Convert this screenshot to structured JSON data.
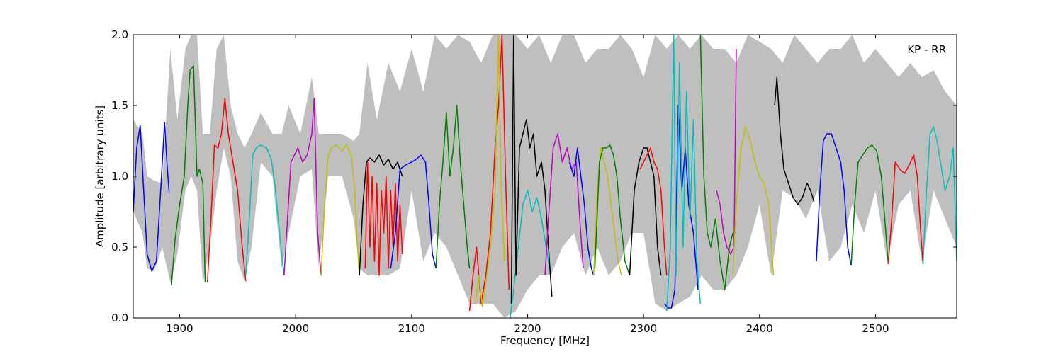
{
  "chart_data": {
    "type": "line",
    "title": "",
    "annotation": "KP - RR",
    "xlabel": "Frequency [MHz]",
    "ylabel": "Amplitude [arbitrary units]",
    "xlim": [
      1860,
      2570
    ],
    "ylim": [
      0.0,
      2.0
    ],
    "xticks": [
      1900,
      2000,
      2100,
      2200,
      2300,
      2400,
      2500
    ],
    "yticks": [
      0.0,
      0.5,
      1.0,
      1.5,
      2.0
    ],
    "xtick_labels": [
      "1900",
      "2000",
      "2100",
      "2200",
      "2300",
      "2400",
      "2500"
    ],
    "ytick_labels": [
      "0.0",
      "0.5",
      "1.0",
      "1.5",
      "2.0"
    ],
    "grid": false,
    "legend": "none",
    "envelope": {
      "color": "#bfbfbf",
      "x": [
        1860,
        1868,
        1872,
        1878,
        1885,
        1892,
        1898,
        1905,
        1910,
        1915,
        1920,
        1926,
        1932,
        1938,
        1944,
        1950,
        1956,
        1962,
        1970,
        1980,
        1988,
        1994,
        2004,
        2014,
        2020,
        2028,
        2040,
        2050,
        2055,
        2062,
        2070,
        2080,
        2090,
        2100,
        2110,
        2120,
        2130,
        2140,
        2150,
        2160,
        2170,
        2180,
        2190,
        2200,
        2210,
        2220,
        2230,
        2240,
        2250,
        2260,
        2270,
        2280,
        2290,
        2300,
        2310,
        2320,
        2330,
        2340,
        2350,
        2360,
        2370,
        2380,
        2390,
        2400,
        2410,
        2420,
        2430,
        2440,
        2450,
        2460,
        2470,
        2480,
        2490,
        2500,
        2510,
        2520,
        2530,
        2540,
        2550,
        2560,
        2570
      ],
      "upper": [
        1.4,
        1.3,
        1.0,
        0.97,
        0.95,
        1.9,
        1.4,
        1.9,
        2.0,
        2.0,
        1.3,
        1.3,
        1.9,
        2.0,
        1.5,
        1.3,
        1.2,
        1.3,
        1.45,
        1.3,
        1.3,
        1.5,
        1.3,
        1.7,
        1.3,
        1.3,
        1.3,
        1.25,
        1.3,
        1.8,
        1.4,
        1.8,
        1.6,
        1.9,
        1.6,
        2.0,
        1.9,
        2.0,
        1.95,
        1.8,
        2.0,
        2.0,
        2.0,
        1.9,
        2.0,
        1.8,
        2.0,
        2.0,
        1.8,
        1.9,
        1.9,
        2.0,
        1.9,
        1.7,
        2.0,
        1.9,
        2.0,
        1.9,
        2.0,
        1.9,
        1.9,
        1.8,
        2.0,
        1.95,
        1.9,
        1.8,
        2.0,
        1.9,
        1.8,
        1.9,
        1.9,
        2.0,
        1.8,
        1.9,
        1.8,
        1.7,
        1.8,
        1.7,
        1.75,
        1.6,
        1.5
      ],
      "lower": [
        0.75,
        0.6,
        0.35,
        0.33,
        0.5,
        0.25,
        0.45,
        0.9,
        1.0,
        0.9,
        0.25,
        0.5,
        0.9,
        1.2,
        1.0,
        0.4,
        0.26,
        0.5,
        1.1,
        1.0,
        0.35,
        0.6,
        1.0,
        1.05,
        0.35,
        1.0,
        1.0,
        0.7,
        0.35,
        0.3,
        0.3,
        0.3,
        0.35,
        0.9,
        0.4,
        0.6,
        0.5,
        0.3,
        0.1,
        0.1,
        0.1,
        0.0,
        0.05,
        0.2,
        0.3,
        0.3,
        0.5,
        0.6,
        0.3,
        0.5,
        0.3,
        0.4,
        0.6,
        0.6,
        0.1,
        0.05,
        0.1,
        0.15,
        0.3,
        0.2,
        0.2,
        0.3,
        0.5,
        0.8,
        0.3,
        0.9,
        0.85,
        0.7,
        0.9,
        0.4,
        0.5,
        0.8,
        0.6,
        0.9,
        0.4,
        0.8,
        0.9,
        0.4,
        0.9,
        0.7,
        0.5
      ]
    },
    "series": [
      {
        "color": "#0000ff",
        "x": [
          1860,
          1863,
          1866,
          1869,
          1872,
          1876,
          1880,
          1884,
          1887,
          1889,
          1891
        ],
        "y": [
          0.75,
          1.2,
          1.36,
          0.9,
          0.45,
          0.33,
          0.4,
          0.95,
          1.38,
          1.1,
          0.88
        ]
      },
      {
        "color": "#008000",
        "x": [
          1893,
          1896,
          1900,
          1904,
          1907,
          1909,
          1912,
          1915,
          1917,
          1920,
          1922
        ],
        "y": [
          0.23,
          0.55,
          0.8,
          1.0,
          1.5,
          1.75,
          1.78,
          1.0,
          1.05,
          0.95,
          0.25
        ]
      },
      {
        "color": "#ff0000",
        "x": [
          1924,
          1927,
          1930,
          1933,
          1936,
          1939,
          1942,
          1946,
          1950,
          1954,
          1957
        ],
        "y": [
          0.25,
          0.7,
          1.22,
          1.2,
          1.3,
          1.55,
          1.3,
          1.1,
          0.9,
          0.5,
          0.26
        ]
      },
      {
        "color": "#00bfbf",
        "x": [
          1957,
          1960,
          1963,
          1966,
          1970,
          1975,
          1979,
          1982,
          1985,
          1988,
          1990
        ],
        "y": [
          0.3,
          0.7,
          1.15,
          1.2,
          1.22,
          1.2,
          1.12,
          0.95,
          0.7,
          0.45,
          0.3
        ]
      },
      {
        "color": "#bf00bf",
        "x": [
          1990,
          1993,
          1996,
          1999,
          2002,
          2006,
          2010,
          2014,
          2016,
          2019,
          2022
        ],
        "y": [
          0.3,
          0.7,
          1.1,
          1.15,
          1.2,
          1.1,
          1.15,
          1.3,
          1.55,
          0.6,
          0.3
        ]
      },
      {
        "color": "#bfbf00",
        "x": [
          2022,
          2025,
          2028,
          2031,
          2035,
          2040,
          2044,
          2048,
          2051,
          2053,
          2055
        ],
        "y": [
          0.3,
          0.8,
          1.15,
          1.2,
          1.22,
          1.18,
          1.22,
          1.15,
          0.9,
          0.55,
          0.3
        ]
      },
      {
        "color": "#000000",
        "x": [
          2055,
          2058,
          2061,
          2064,
          2068,
          2072,
          2076,
          2080,
          2084,
          2088,
          2092
        ],
        "y": [
          0.3,
          0.8,
          1.1,
          1.13,
          1.1,
          1.15,
          1.08,
          1.12,
          1.05,
          1.1,
          1.0
        ]
      },
      {
        "color": "#ff0000",
        "x": [
          2060,
          2062,
          2064,
          2066,
          2068,
          2070,
          2072,
          2074,
          2076,
          2078,
          2080,
          2082,
          2084,
          2086,
          2088,
          2090,
          2092
        ],
        "y": [
          0.35,
          1.1,
          0.5,
          1.0,
          0.4,
          0.95,
          0.3,
          0.9,
          0.6,
          1.0,
          0.35,
          0.9,
          0.5,
          0.95,
          0.4,
          0.8,
          0.45
        ]
      },
      {
        "color": "#0000ff",
        "x": [
          2082,
          2086,
          2090,
          2095,
          2100,
          2104,
          2108,
          2112,
          2115,
          2118,
          2121
        ],
        "y": [
          0.35,
          0.6,
          1.05,
          1.08,
          1.1,
          1.12,
          1.15,
          1.1,
          0.8,
          0.45,
          0.35
        ]
      },
      {
        "color": "#008000",
        "x": [
          2121,
          2124,
          2127,
          2130,
          2133,
          2136,
          2139,
          2142,
          2145,
          2148,
          2150
        ],
        "y": [
          0.35,
          0.8,
          1.1,
          1.45,
          1.0,
          1.2,
          1.5,
          1.1,
          0.8,
          0.5,
          0.35
        ]
      },
      {
        "color": "#ff0000",
        "x": [
          2150,
          2153,
          2156,
          2160,
          2164,
          2168,
          2172,
          2175,
          2178,
          2181,
          2184
        ],
        "y": [
          0.05,
          0.3,
          0.5,
          0.1,
          0.3,
          0.6,
          1.2,
          1.5,
          2.0,
          1.0,
          0.2
        ]
      },
      {
        "color": "#bfbf00",
        "x": [
          2155,
          2158,
          2161,
          2164,
          2168,
          2172,
          2175,
          2177,
          2180
        ],
        "y": [
          0.1,
          0.3,
          0.08,
          0.25,
          0.5,
          0.9,
          2.0,
          1.0,
          0.4
        ]
      },
      {
        "color": "#00bfbf",
        "x": [
          2185,
          2188,
          2192,
          2196,
          2200,
          2204,
          2208,
          2212,
          2216,
          2220
        ],
        "y": [
          0.0,
          0.2,
          0.5,
          0.8,
          0.9,
          0.75,
          0.85,
          0.7,
          0.5,
          0.3
        ]
      },
      {
        "color": "#000000",
        "x": [
          2186,
          2188,
          2190,
          2193,
          2196,
          2199,
          2202,
          2205,
          2208,
          2212,
          2215,
          2218,
          2221
        ],
        "y": [
          0.1,
          2.0,
          0.3,
          1.2,
          1.3,
          1.4,
          1.2,
          1.3,
          1.0,
          1.1,
          0.9,
          0.5,
          0.15
        ]
      },
      {
        "color": "#bf00bf",
        "x": [
          2215,
          2218,
          2222,
          2226,
          2230,
          2234,
          2238,
          2242,
          2245,
          2248
        ],
        "y": [
          0.3,
          0.7,
          1.2,
          1.3,
          1.1,
          1.2,
          1.05,
          1.1,
          0.7,
          0.35
        ]
      },
      {
        "color": "#0000ff",
        "x": [
          2236,
          2240,
          2243,
          2246,
          2249,
          2252,
          2255,
          2257
        ],
        "y": [
          1.1,
          1.0,
          1.2,
          1.0,
          0.8,
          0.5,
          0.35,
          0.3
        ]
      },
      {
        "color": "#bfbf00",
        "x": [
          2257,
          2260,
          2263,
          2266,
          2269,
          2272,
          2275,
          2278,
          2281
        ],
        "y": [
          0.3,
          0.9,
          1.2,
          1.1,
          1.0,
          0.8,
          0.6,
          0.4,
          0.3
        ]
      },
      {
        "color": "#008000",
        "x": [
          2258,
          2262,
          2265,
          2268,
          2271,
          2274,
          2277,
          2280,
          2284,
          2288
        ],
        "y": [
          0.35,
          1.1,
          1.2,
          1.2,
          1.22,
          1.15,
          1.0,
          0.7,
          0.4,
          0.3
        ]
      },
      {
        "color": "#000000",
        "x": [
          2288,
          2292,
          2296,
          2300,
          2303,
          2306,
          2309,
          2312,
          2315
        ],
        "y": [
          0.3,
          0.9,
          1.1,
          1.2,
          1.2,
          1.1,
          1.0,
          0.5,
          0.3
        ]
      },
      {
        "color": "#ff0000",
        "x": [
          2297,
          2300,
          2303,
          2306,
          2309,
          2312,
          2315,
          2318,
          2320
        ],
        "y": [
          1.05,
          1.1,
          1.15,
          1.2,
          1.1,
          1.05,
          0.9,
          0.5,
          0.3
        ]
      },
      {
        "color": "#0000ff",
        "x": [
          2318,
          2321,
          2324,
          2327,
          2330,
          2333,
          2336,
          2339,
          2343,
          2347
        ],
        "y": [
          0.1,
          0.07,
          0.07,
          0.2,
          1.5,
          0.9,
          1.2,
          0.8,
          0.6,
          0.2
        ]
      },
      {
        "color": "#00bfbf",
        "x": [
          2320,
          2323,
          2326,
          2328,
          2331,
          2334,
          2337,
          2340,
          2343,
          2346,
          2349
        ],
        "y": [
          0.05,
          0.5,
          2.0,
          0.3,
          1.8,
          0.5,
          1.6,
          0.7,
          1.4,
          0.4,
          0.1
        ]
      },
      {
        "color": "#008000",
        "x": [
          2349,
          2352,
          2355,
          2358,
          2362,
          2366,
          2370,
          2374,
          2377
        ],
        "y": [
          2.0,
          1.0,
          0.6,
          0.5,
          0.7,
          0.4,
          0.2,
          0.5,
          0.6
        ]
      },
      {
        "color": "#bf00bf",
        "x": [
          2363,
          2366,
          2369,
          2372,
          2375,
          2378,
          2380
        ],
        "y": [
          0.9,
          0.8,
          0.6,
          0.5,
          0.45,
          0.5,
          1.9
        ]
      },
      {
        "color": "#bfbf00",
        "x": [
          2377,
          2380,
          2384,
          2388,
          2392,
          2396,
          2400,
          2404,
          2408,
          2412
        ],
        "y": [
          0.3,
          0.8,
          1.2,
          1.35,
          1.25,
          1.1,
          1.0,
          0.95,
          0.8,
          0.3
        ]
      },
      {
        "color": "#000000",
        "x": [
          2413,
          2415,
          2418,
          2421,
          2425,
          2429,
          2433,
          2437,
          2441,
          2444,
          2447
        ],
        "y": [
          1.5,
          1.7,
          1.3,
          1.05,
          0.95,
          0.85,
          0.8,
          0.85,
          0.95,
          0.9,
          0.82
        ]
      },
      {
        "color": "#0000ff",
        "x": [
          2449,
          2452,
          2455,
          2458,
          2462,
          2466,
          2470,
          2473,
          2476,
          2479
        ],
        "y": [
          0.4,
          0.9,
          1.25,
          1.3,
          1.3,
          1.2,
          1.1,
          0.9,
          0.5,
          0.37
        ]
      },
      {
        "color": "#008000",
        "x": [
          2479,
          2482,
          2485,
          2489,
          2493,
          2497,
          2501,
          2505,
          2508,
          2511
        ],
        "y": [
          0.37,
          0.8,
          1.1,
          1.15,
          1.2,
          1.22,
          1.18,
          1.0,
          0.7,
          0.38
        ]
      },
      {
        "color": "#ff0000",
        "x": [
          2511,
          2514,
          2517,
          2521,
          2525,
          2529,
          2533,
          2536,
          2539,
          2541
        ],
        "y": [
          0.38,
          0.7,
          1.1,
          1.05,
          1.02,
          1.08,
          1.15,
          1.0,
          0.6,
          0.38
        ]
      },
      {
        "color": "#00bfbf",
        "x": [
          2541,
          2544,
          2547,
          2550,
          2553,
          2556,
          2560,
          2564,
          2567,
          2570
        ],
        "y": [
          0.38,
          0.9,
          1.3,
          1.35,
          1.25,
          1.1,
          0.9,
          1.0,
          1.2,
          0.4
        ]
      }
    ]
  }
}
